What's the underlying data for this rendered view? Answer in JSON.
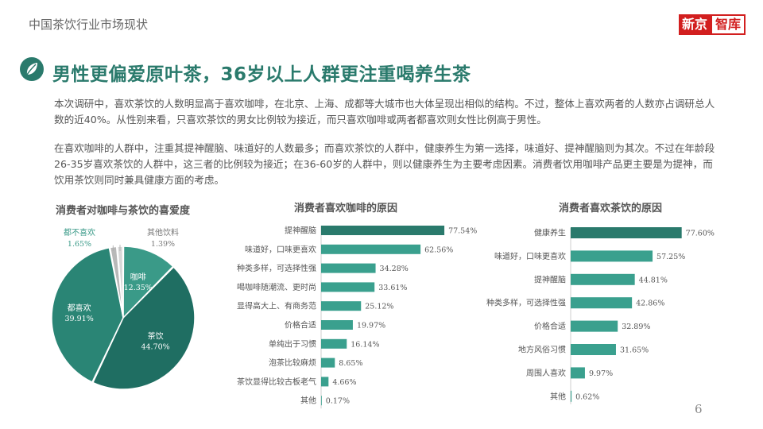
{
  "header": {
    "title": "中国茶饮行业市场现状",
    "brand_left": "新京",
    "brand_right": "智库"
  },
  "headline": "男性更偏爱原叶茶，36岁以上人群更注重喝养生茶",
  "paragraphs": [
    "本次调研中，喜欢茶饮的人数明显高于喜欢咖啡，在北京、上海、成都等大城市也大体呈现出相似的结构。不过，整体上喜欢两者的人数亦占调研总人数的近40%。从性别来看，只喜欢茶饮的男女比例较为接近，而只喜欢咖啡或两者都喜欢则女性比例高于男性。",
    "在喜欢咖啡的人群中，注重其提神醒脑、味道好的人数最多；而喜欢茶饮的人群中，健康养生为第一选择，味道好、提神醒脑则为其次。不过在年龄段26-35岁喜欢茶饮的人群中，这三者的比例较为接近；在36-60岁的人群中，则以健康养生为主要考虑因素。消费者饮用咖啡产品更主要是为提神，而饮用茶饮则同时兼具健康方面的考虑。"
  ],
  "page_number": "6",
  "colors": {
    "accent": "#2a7a6c",
    "bar_dark": "#2a7a6c",
    "bar_light": "#3aa08e",
    "pie_tea": "#1f6e62",
    "pie_both": "#2a8575",
    "pie_coffee": "#3a9a88",
    "pie_neither": "#b8b8b8",
    "pie_other": "#d8d8d8",
    "brand_red": "#d21f1f"
  },
  "chart_data": [
    {
      "type": "pie",
      "title": "消费者对咖啡与茶饮的喜爱度",
      "slices": [
        {
          "label": "咖啡",
          "value": 12.35,
          "value_label": "12.35%",
          "color": "#3a9a88"
        },
        {
          "label": "茶饮",
          "value": 44.7,
          "value_label": "44.70%",
          "color": "#1f6e62"
        },
        {
          "label": "都喜欢",
          "value": 39.91,
          "value_label": "39.91%",
          "color": "#2a8575"
        },
        {
          "label": "都不喜欢",
          "value": 1.65,
          "value_label": "1.65%",
          "color": "#b8b8b8"
        },
        {
          "label": "其他饮料",
          "value": 1.39,
          "value_label": "1.39%",
          "color": "#d8d8d8"
        }
      ]
    },
    {
      "type": "bar",
      "orientation": "horizontal",
      "title": "消费者喜欢咖啡的原因",
      "categories": [
        "提神醒脑",
        "味道好，口味更喜欢",
        "种类多样，可选择性强",
        "喝咖啡随潮流、更时尚",
        "显得高大上、有商务范",
        "价格合适",
        "单纯出于习惯",
        "泡茶比较麻烦",
        "茶饮显得比较古板老气",
        "其他"
      ],
      "values": [
        77.54,
        62.56,
        34.28,
        33.61,
        25.12,
        19.97,
        16.14,
        8.65,
        4.66,
        0.17
      ],
      "value_labels": [
        "77.54%",
        "62.56%",
        "34.28%",
        "33.61%",
        "25.12%",
        "19.97%",
        "16.14%",
        "8.65%",
        "4.66%",
        "0.17%"
      ],
      "xlim": [
        0,
        100
      ]
    },
    {
      "type": "bar",
      "orientation": "horizontal",
      "title": "消费者喜欢茶饮的原因",
      "categories": [
        "健康养生",
        "味道好，口味更喜欢",
        "提神醒脑",
        "种类多样，可选择性强",
        "价格合适",
        "地方风俗习惯",
        "周围人喜欢",
        "其他"
      ],
      "values": [
        77.6,
        57.25,
        44.81,
        42.86,
        32.89,
        31.65,
        9.97,
        0.62
      ],
      "value_labels": [
        "77.60%",
        "57.25%",
        "44.81%",
        "42.86%",
        "32.89%",
        "31.65%",
        "9.97%",
        "0.62%"
      ],
      "xlim": [
        0,
        100
      ]
    }
  ]
}
